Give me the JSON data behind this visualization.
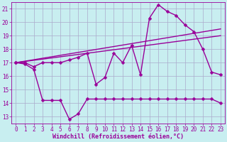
{
  "title": "",
  "xlabel": "Windchill (Refroidissement éolien,°C)",
  "ylabel": "",
  "bg_color": "#c8eef0",
  "line_color": "#990099",
  "grid_color": "#aaaacc",
  "xlim": [
    -0.5,
    23.5
  ],
  "ylim": [
    12.5,
    21.5
  ],
  "yticks": [
    13,
    14,
    15,
    16,
    17,
    18,
    19,
    20,
    21
  ],
  "xticks": [
    0,
    1,
    2,
    3,
    4,
    5,
    6,
    7,
    8,
    9,
    10,
    11,
    12,
    13,
    14,
    15,
    16,
    17,
    18,
    19,
    20,
    21,
    22,
    23
  ],
  "line1_x": [
    0,
    1,
    2,
    3,
    4,
    5,
    6,
    7,
    8,
    9,
    10,
    11,
    12,
    13,
    14,
    15,
    16,
    17,
    18,
    19,
    20,
    21,
    22,
    23
  ],
  "line1_y": [
    17.0,
    16.9,
    16.5,
    14.2,
    14.2,
    14.2,
    12.8,
    13.2,
    14.3,
    14.3,
    14.3,
    14.3,
    14.3,
    14.3,
    14.3,
    14.3,
    14.3,
    14.3,
    14.3,
    14.3,
    14.3,
    14.3,
    14.3,
    14.0
  ],
  "line2_x": [
    0,
    1,
    2,
    3,
    4,
    5,
    6,
    7,
    8,
    9,
    10,
    11,
    12,
    13,
    14,
    15,
    16,
    17,
    18,
    19,
    20,
    21,
    22,
    23
  ],
  "line2_y": [
    17.0,
    17.0,
    16.7,
    17.0,
    17.0,
    17.0,
    17.2,
    17.4,
    17.7,
    15.4,
    15.9,
    17.7,
    17.0,
    18.3,
    16.1,
    20.3,
    21.3,
    20.8,
    20.5,
    19.8,
    19.3,
    18.0,
    16.3,
    16.1
  ],
  "line3_x": [
    0,
    23
  ],
  "line3_y": [
    17.0,
    19.5
  ],
  "line4_x": [
    0,
    23
  ],
  "line4_y": [
    17.0,
    19.0
  ],
  "markersize": 2.5,
  "linewidth": 1.0
}
